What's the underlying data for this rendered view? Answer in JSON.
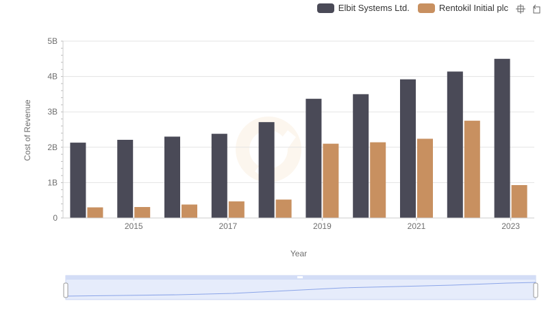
{
  "legend": {
    "items": [
      {
        "label": "Elbit Systems Ltd.",
        "color": "#4a4a57"
      },
      {
        "label": "Rentokil Initial plc",
        "color": "#c89060"
      }
    ]
  },
  "toolbar": {
    "icons": [
      "crosshair-zoom-icon",
      "reset-zoom-icon"
    ]
  },
  "chart_data": {
    "type": "bar",
    "categories": [
      2014,
      2015,
      2016,
      2017,
      2018,
      2019,
      2020,
      2021,
      2022,
      2023
    ],
    "x_tick_labels": [
      "2015",
      "2017",
      "2019",
      "2021",
      "2023"
    ],
    "xlabel": "Year",
    "ylabel": "Cost of Revenue",
    "ylim": [
      0,
      5000000000
    ],
    "y_tick_labels": [
      "0",
      "1B",
      "2B",
      "3B",
      "4B",
      "5B"
    ],
    "grid": true,
    "legend_position": "top-right",
    "series": [
      {
        "name": "Elbit Systems Ltd.",
        "color": "#4a4a57",
        "values": [
          2130000000,
          2210000000,
          2300000000,
          2380000000,
          2710000000,
          3370000000,
          3500000000,
          3920000000,
          4140000000,
          4500000000
        ]
      },
      {
        "name": "Rentokil Initial plc",
        "color": "#c89060",
        "values": [
          300000000,
          310000000,
          380000000,
          470000000,
          520000000,
          2100000000,
          2140000000,
          2240000000,
          2750000000,
          930000000
        ]
      }
    ]
  }
}
